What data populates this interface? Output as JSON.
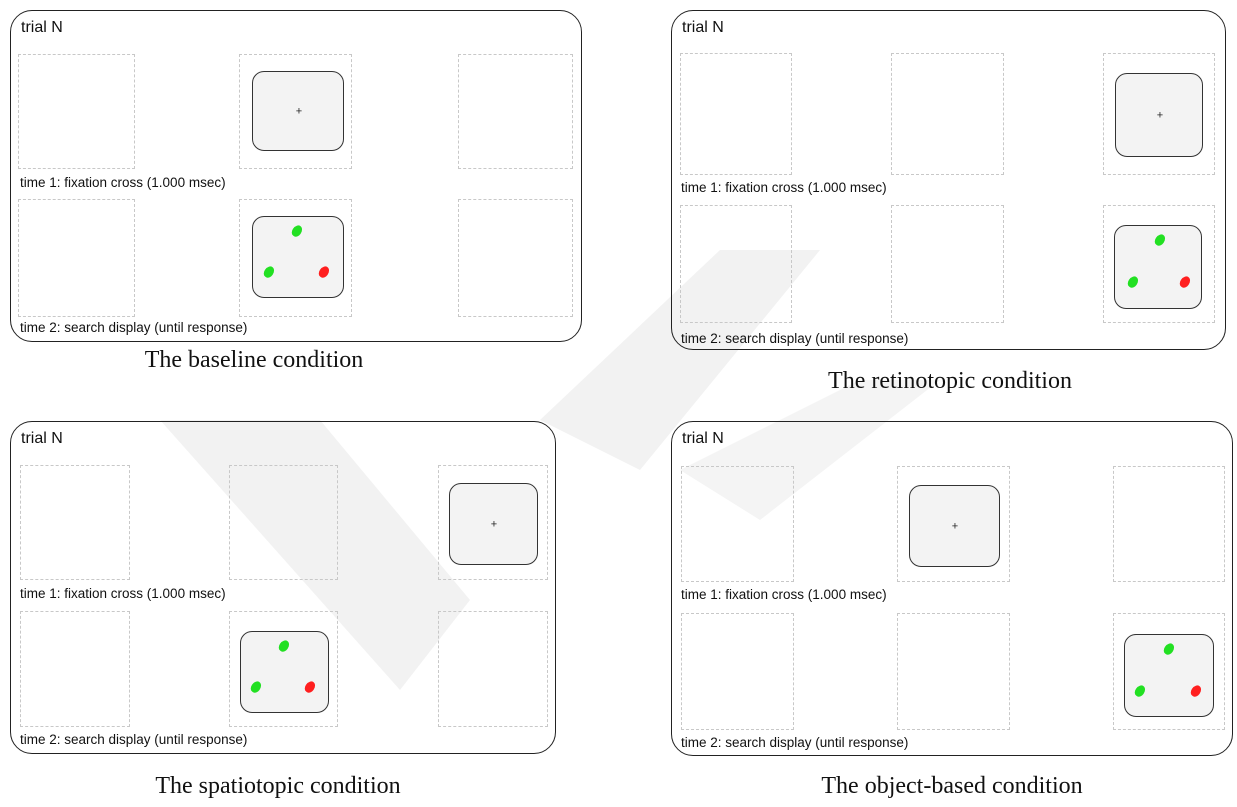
{
  "panels": [
    {
      "id": "baseline",
      "trial_label": "trial N",
      "time1_label": "time 1: fixation cross (1.000 msec)",
      "time2_label": "time 2: search display (until response)",
      "caption": "The baseline condition",
      "fixation_symbol": "+"
    },
    {
      "id": "retinotopic",
      "trial_label": "trial N",
      "time1_label": "time 1: fixation cross (1.000 msec)",
      "time2_label": "time 2: search display (until response)",
      "caption": "The retinotopic condition",
      "fixation_symbol": "+"
    },
    {
      "id": "spatiotopic",
      "trial_label": "trial N",
      "time1_label": "time 1: fixation cross (1.000 msec)",
      "time2_label": "time 2: search display (until response)",
      "caption": "The spatiotopic condition",
      "fixation_symbol": "+"
    },
    {
      "id": "object-based",
      "trial_label": "trial N",
      "time1_label": "time 1: fixation cross (1.000 msec)",
      "time2_label": "time 2: search display (until response)",
      "caption": "The object-based condition",
      "fixation_symbol": "+"
    }
  ],
  "colors": {
    "target": "#ff1f1f",
    "distractor": "#22e022",
    "screen_fill": "#f3f3f3",
    "watermark": "#f1f1f1"
  }
}
